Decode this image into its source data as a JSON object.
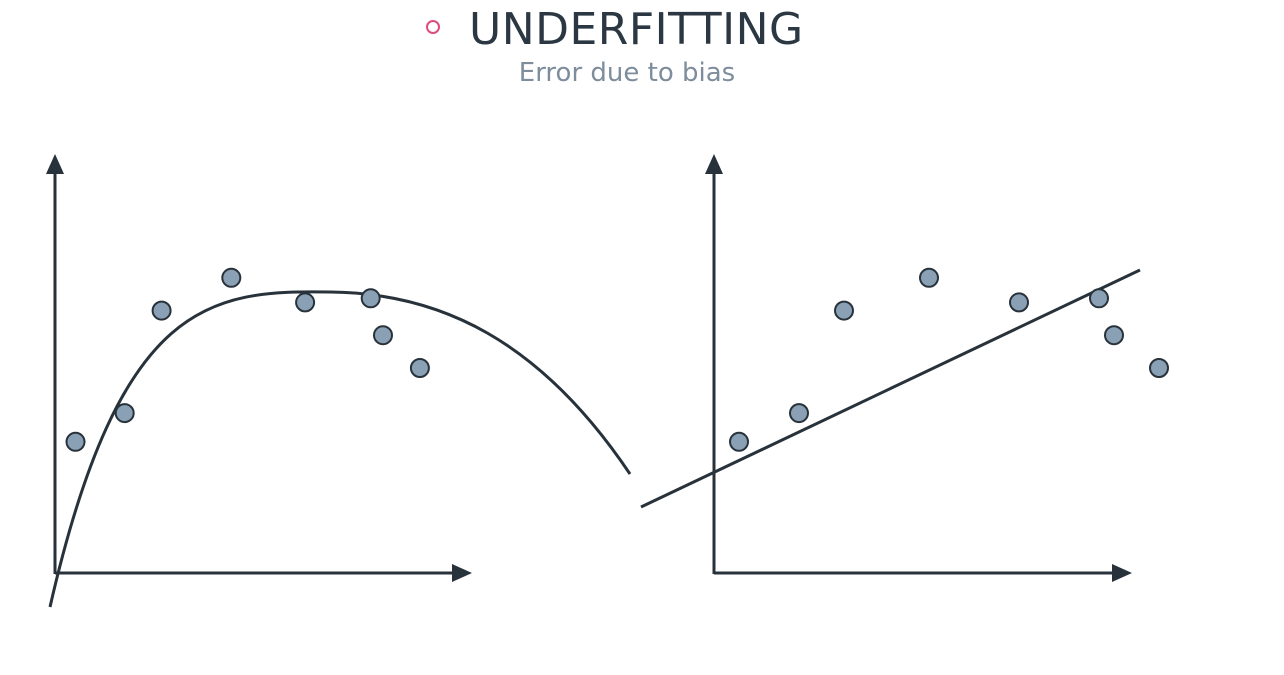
{
  "header": {
    "title": "UNDERFITTING",
    "subtitle": "Error due to bias",
    "bullet_color": "#de4c7e"
  },
  "colors": {
    "line": "#28323b",
    "point_fill": "#8aa0b4",
    "point_stroke": "#28323b"
  },
  "chart_data": [
    {
      "type": "scatter",
      "fit": "curve",
      "points": [
        {
          "x": 0.5,
          "y": 3.2
        },
        {
          "x": 1.7,
          "y": 3.9
        },
        {
          "x": 2.6,
          "y": 6.4
        },
        {
          "x": 4.3,
          "y": 7.2
        },
        {
          "x": 6.1,
          "y": 6.6
        },
        {
          "x": 7.7,
          "y": 6.7
        },
        {
          "x": 8.0,
          "y": 5.8
        },
        {
          "x": 8.9,
          "y": 5.0
        }
      ]
    },
    {
      "type": "scatter",
      "fit": "line",
      "points": [
        {
          "x": 0.5,
          "y": 3.2
        },
        {
          "x": 1.7,
          "y": 3.9
        },
        {
          "x": 2.6,
          "y": 6.4
        },
        {
          "x": 4.3,
          "y": 7.2
        },
        {
          "x": 6.1,
          "y": 6.6
        },
        {
          "x": 7.7,
          "y": 6.7
        },
        {
          "x": 8.0,
          "y": 5.8
        },
        {
          "x": 8.9,
          "y": 5.0
        }
      ]
    }
  ]
}
